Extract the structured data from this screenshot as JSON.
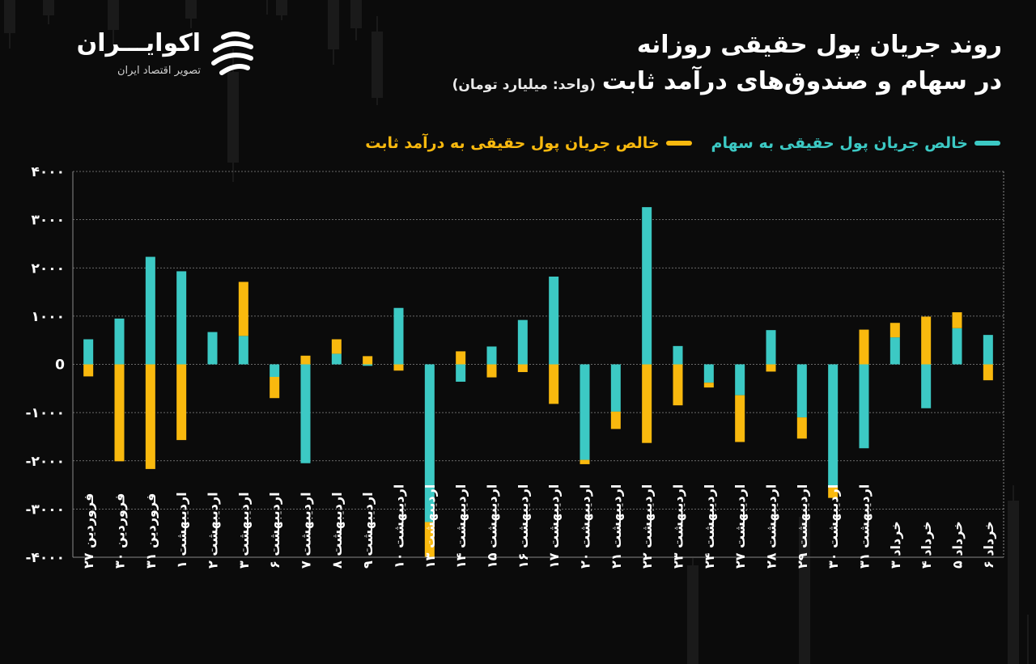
{
  "header": {
    "title_line1": "روند جریان پول حقیقی روزانه",
    "title_line2": "در سهام و صندوق‌های درآمد ثابت",
    "unit": "(واحد: میلیارد تومان)"
  },
  "logo": {
    "name": "اکوایـــران",
    "tagline": "تصویر اقتصاد ایران",
    "icon": "ekoiran-logo-icon"
  },
  "legend": {
    "stocks": "خالص جریان پول حقیقی به سهام",
    "fixed_income": "خالص جریان پول حقیقی به درآمد ثابت"
  },
  "colors": {
    "stocks": "#3cc9c4",
    "fixed_income": "#f9b90e",
    "background": "#0b0b0b",
    "grid": "#8a8a8a"
  },
  "chart_data": {
    "type": "bar",
    "stacked": true,
    "ylim": [
      -4000,
      4000
    ],
    "yticks": [
      "۴۰۰۰",
      "۳۰۰۰",
      "۲۰۰۰",
      "۱۰۰۰",
      "0",
      "-۱۰۰۰",
      "-۲۰۰۰",
      "-۳۰۰۰",
      "-۴۰۰۰"
    ],
    "grid": true,
    "legend_position": "top-right",
    "categories": [
      "فروردین ۲۷",
      "فروردین ۳۰",
      "فروردین ۳۱",
      "اردیبهشت ۱",
      "اردیبهشت ۲",
      "اردیبهشت ۳",
      "اردیبهشت ۶",
      "اردیبهشت ۷",
      "اردیبهشت ۸",
      "اردیبهشت ۹",
      "اردیبهشت ۱۰",
      "اردیبهشت ۱۳",
      "اردیبهشت ۱۴",
      "اردیبهشت ۱۵",
      "اردیبهشت ۱۶",
      "اردیبهشت ۱۷",
      "اردیبهشت ۲۰",
      "اردیبهشت ۲۱",
      "اردیبهشت ۲۲",
      "اردیبهشت ۲۳",
      "اردیبهشت ۲۴",
      "اردیبهشت ۲۷",
      "اردیبهشت ۲۸",
      "اردیبهشت ۲۹",
      "اردیبهشت ۳۰",
      "اردیبهشت ۳۱",
      "خرداد ۳",
      "خرداد ۴",
      "خرداد ۵",
      "خرداد ۶"
    ],
    "series": [
      {
        "name": "خالص جریان پول حقیقی به سهام",
        "values": [
          520,
          950,
          2230,
          1930,
          670,
          590,
          -260,
          -2050,
          220,
          -30,
          1170,
          -3270,
          -360,
          370,
          920,
          1820,
          -1980,
          -980,
          3260,
          380,
          -380,
          -640,
          710,
          -1100,
          -2550,
          -1740,
          560,
          -910,
          750,
          610
        ]
      },
      {
        "name": "خالص جریان پول حقیقی به درآمد ثابت",
        "values": [
          -250,
          -2010,
          -2170,
          -1570,
          0,
          1120,
          -440,
          180,
          300,
          170,
          -130,
          -720,
          270,
          -270,
          -160,
          -820,
          -90,
          -360,
          -1630,
          -850,
          -100,
          -970,
          -150,
          -440,
          -220,
          720,
          300,
          990,
          330,
          -330
        ]
      }
    ]
  }
}
